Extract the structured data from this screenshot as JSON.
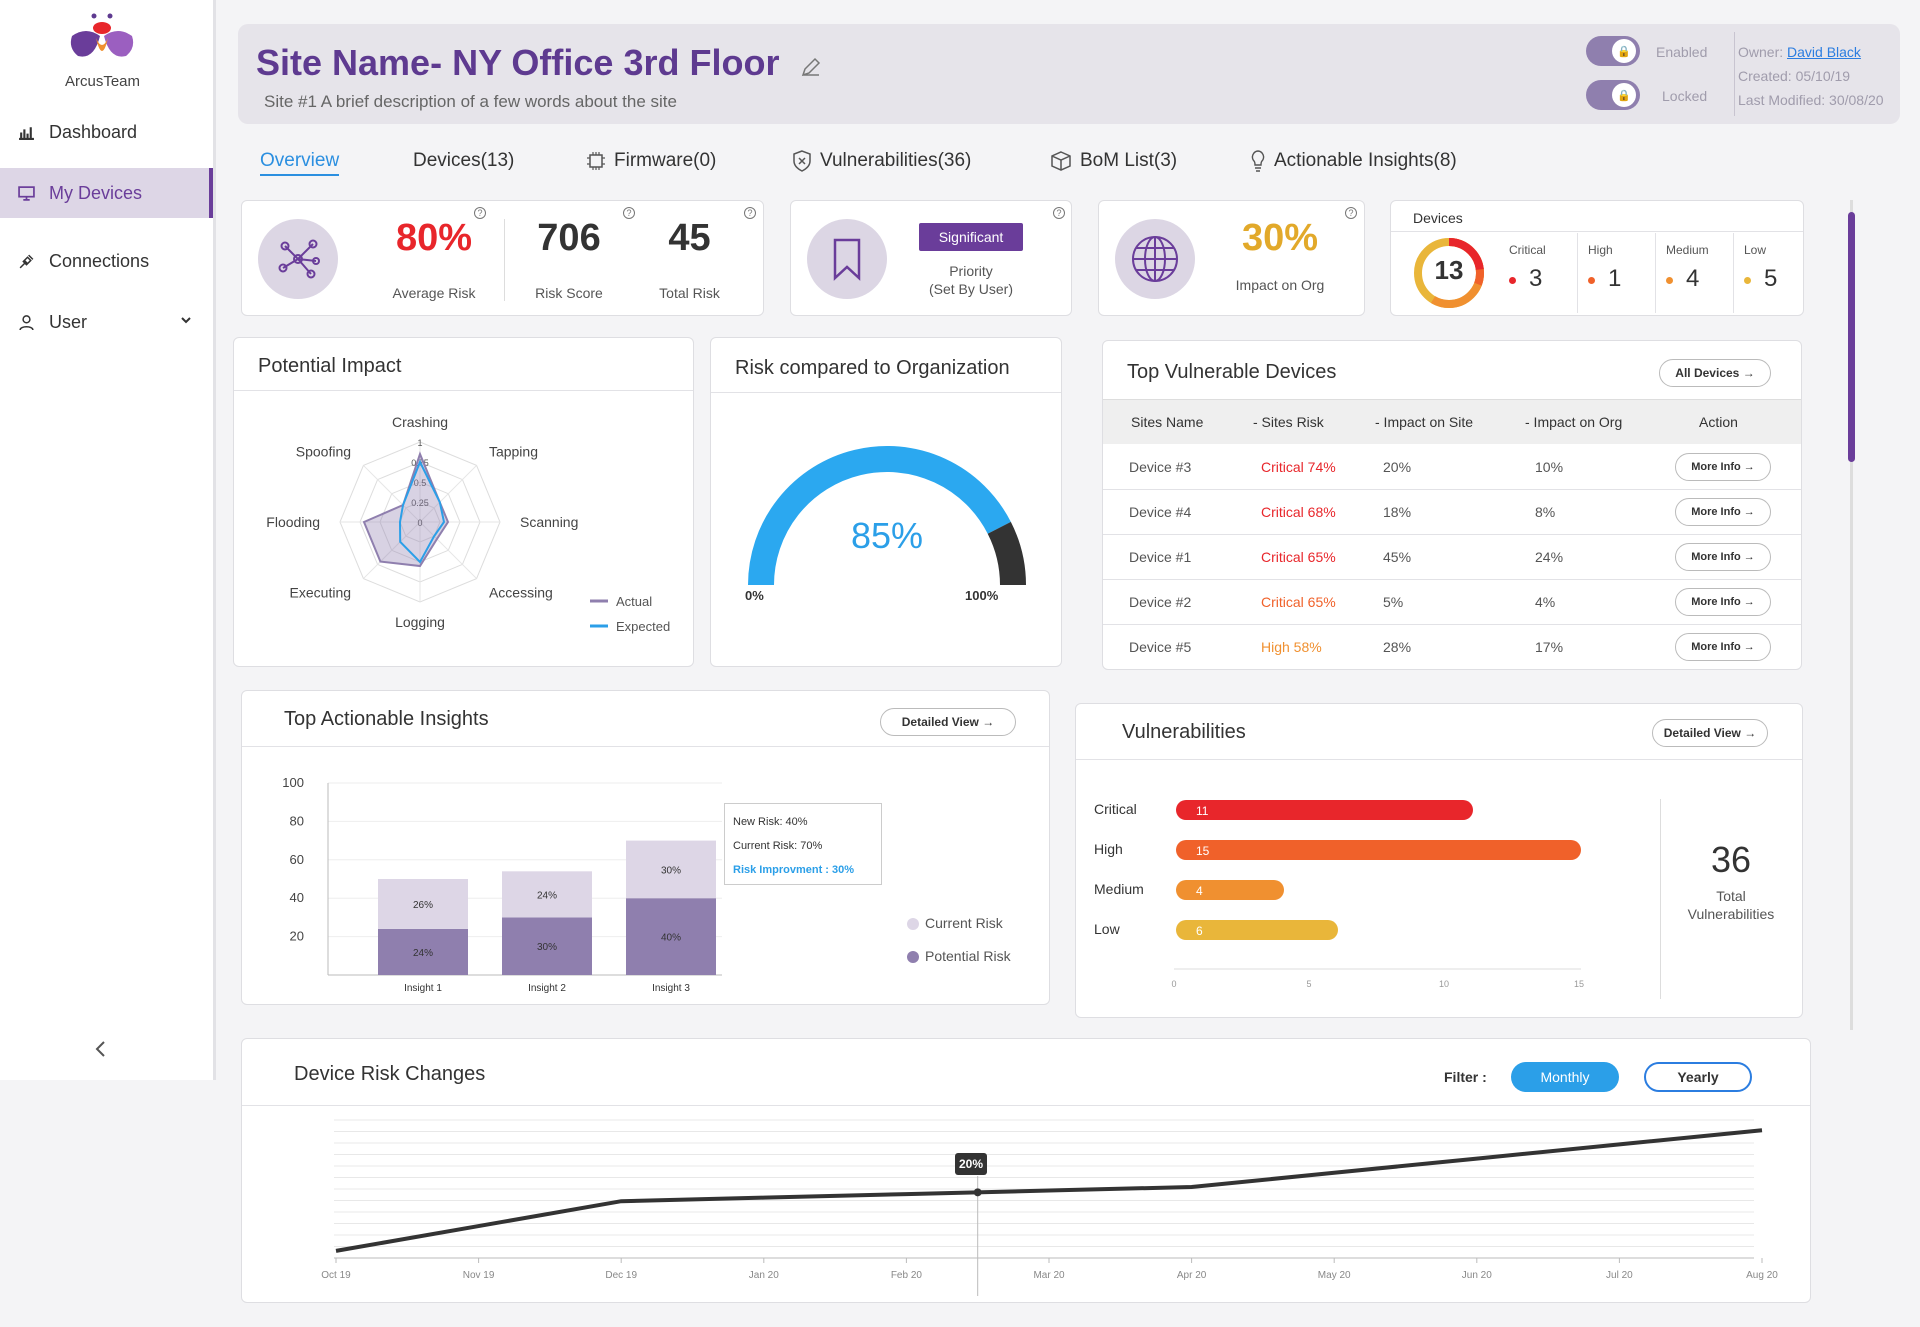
{
  "brand": {
    "name": "ArcusTeam"
  },
  "nav": {
    "items": [
      {
        "label": "Dashboard"
      },
      {
        "label": "My Devices"
      },
      {
        "label": "Connections"
      },
      {
        "label": "User"
      }
    ]
  },
  "header": {
    "title": "Site Name- NY Office 3rd Floor",
    "subtitle": "Site #1 A brief description of a few words about the site",
    "enabled_label": "Enabled",
    "locked_label": "Locked",
    "owner_label": "Owner:",
    "owner_name": "David Black",
    "created": "Created: 05/10/19",
    "modified": "Last Modified: 30/08/20"
  },
  "tabs": [
    {
      "label": "Overview"
    },
    {
      "label": "Devices(13)"
    },
    {
      "label": "Firmware(0)"
    },
    {
      "label": "Vulnerabilities(36)"
    },
    {
      "label": "BoM List(3)"
    },
    {
      "label": "Actionable Insights(8)"
    }
  ],
  "stats": {
    "avg_risk": "80%",
    "avg_risk_label": "Average Risk",
    "risk_score": "706",
    "risk_score_label": "Risk Score",
    "total_risk": "45",
    "total_risk_label": "Total Risk",
    "priority_badge": "Significant",
    "priority_label": "Priority",
    "priority_sub": "(Set By User)",
    "impact": "30%",
    "impact_label": "Impact on Org"
  },
  "devices_card": {
    "title": "Devices",
    "total": "13",
    "levels": [
      {
        "label": "Critical",
        "count": "3",
        "color": "#e8262b"
      },
      {
        "label": "High",
        "count": "1",
        "color": "#f0612a"
      },
      {
        "label": "Medium",
        "count": "4",
        "color": "#f09030"
      },
      {
        "label": "Low",
        "count": "5",
        "color": "#e9b63a"
      }
    ]
  },
  "potential_impact": {
    "title": "Potential Impact",
    "axes": [
      "Crashing",
      "Tapping",
      "Scanning",
      "Accessing",
      "Logging",
      "Executing",
      "Flooding",
      "Spoofing"
    ],
    "ticks": [
      "1",
      "0.75",
      "0.5",
      "0.25",
      "0"
    ],
    "actual": [
      0.85,
      0.35,
      0.35,
      0.3,
      0.55,
      0.7,
      0.7,
      0.3
    ],
    "expected": [
      0.75,
      0.35,
      0.3,
      0.25,
      0.5,
      0.35,
      0.25,
      0.3
    ],
    "legend": [
      "Actual",
      "Expected"
    ],
    "colors": {
      "actual": "#8f7fae",
      "expected": "#2b9fe8"
    }
  },
  "risk_org": {
    "title": "Risk compared to Organization",
    "value": "85%",
    "pct": 0.85,
    "min_label": "0%",
    "max_label": "100%"
  },
  "top_devices": {
    "title": "Top Vulnerable Devices",
    "all_button": "All Devices",
    "headers": [
      "Sites Name",
      "- Sites Risk",
      "- Impact on Site",
      "- Impact on Org",
      "Action"
    ],
    "rows": [
      {
        "name": "Device #3",
        "risk": "Critical 74%",
        "site": "20%",
        "org": "10%",
        "action": "More Info",
        "color": "#e8262b"
      },
      {
        "name": "Device #4",
        "risk": "Critical 68%",
        "site": "18%",
        "org": "8%",
        "action": "More Info",
        "color": "#e8262b"
      },
      {
        "name": "Device #1",
        "risk": "Critical 65%",
        "site": "45%",
        "org": "24%",
        "action": "More Info",
        "color": "#e8262b"
      },
      {
        "name": "Device #2",
        "risk": "Critical 65%",
        "site": "5%",
        "org": "4%",
        "action": "More Info",
        "color": "#f0612a"
      },
      {
        "name": "Device #5",
        "risk": "High 58%",
        "site": "28%",
        "org": "17%",
        "action": "More Info",
        "color": "#f09030"
      }
    ]
  },
  "insights": {
    "title": "Top Actionable Insights",
    "button": "Detailed View",
    "tooltip": {
      "new": "New Risk: 40%",
      "current": "Current Risk: 70%",
      "improve": "Risk Improvment : 30%"
    },
    "legend": [
      "Current Risk",
      "Potential Risk"
    ]
  },
  "vulns": {
    "title": "Vulnerabilities",
    "button": "Detailed View",
    "total": "36",
    "total_label1": "Total",
    "total_label2": "Vulnerabilities"
  },
  "risk_changes": {
    "title": "Device Risk Changes",
    "filter_label": "Filter :",
    "monthly": "Monthly",
    "yearly": "Yearly",
    "marker": "20%"
  },
  "chart_data": [
    {
      "type": "bar",
      "title": "Top Actionable Insights",
      "categories": [
        "Insight 1",
        "Insight 2",
        "Insight 3"
      ],
      "ylim": [
        0,
        100
      ],
      "yticks": [
        20,
        40,
        60,
        80,
        100
      ],
      "series": [
        {
          "name": "Potential Risk",
          "values": [
            24,
            30,
            40
          ],
          "labels": [
            "24%",
            "30%",
            "40%"
          ],
          "color": "#8f7fae"
        },
        {
          "name": "Current Risk",
          "values": [
            26,
            24,
            30
          ],
          "labels": [
            "26%",
            "24%",
            "30%"
          ],
          "color": "#ddd6e6"
        }
      ]
    },
    {
      "type": "bar",
      "title": "Vulnerabilities",
      "orientation": "horizontal",
      "categories": [
        "Critical",
        "High",
        "Medium",
        "Low"
      ],
      "values": [
        11,
        15,
        4,
        6
      ],
      "colors": [
        "#e8262b",
        "#f0612a",
        "#f09030",
        "#e9b63a"
      ],
      "xlim": [
        0,
        15
      ],
      "xticks": [
        "0",
        "5",
        "10",
        "15"
      ]
    },
    {
      "type": "line",
      "title": "Device Risk Changes",
      "x": [
        "Oct 19",
        "Nov 19",
        "Dec 19",
        "Jan 20",
        "Feb 20",
        "Mar 20",
        "Apr 20",
        "May 20",
        "Jun 20",
        "Jul 20",
        "Aug 20"
      ],
      "values": [
        2,
        9,
        16,
        17,
        18,
        19,
        20,
        24,
        28,
        32,
        36
      ],
      "ylim": [
        0,
        40
      ]
    }
  ]
}
